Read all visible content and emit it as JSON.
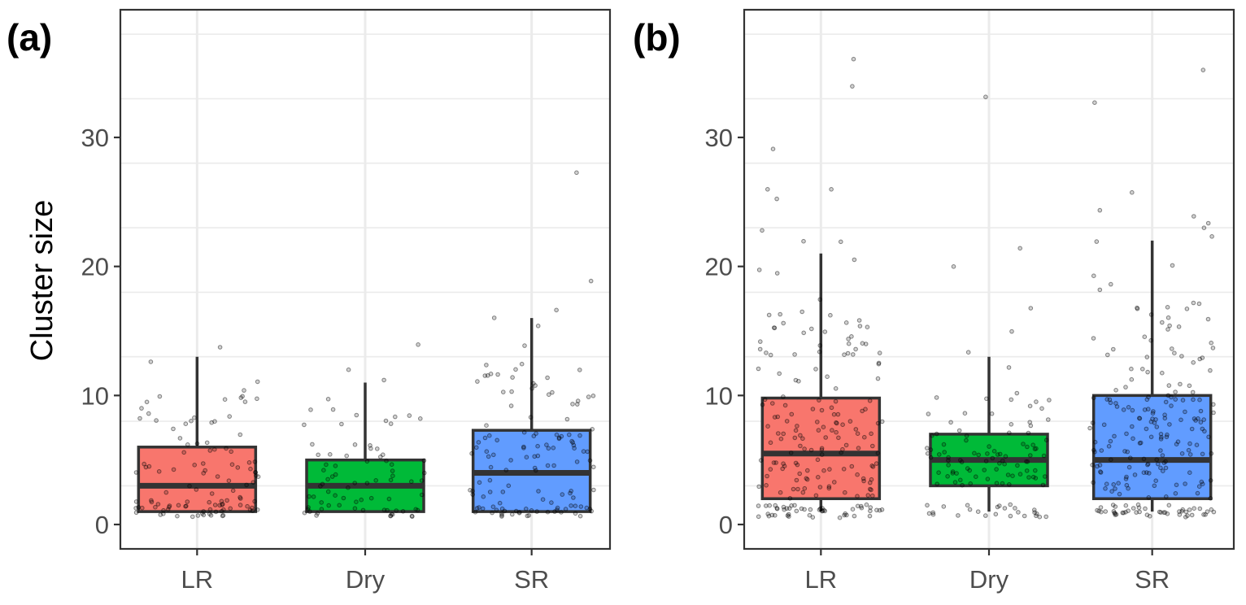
{
  "chart_data": [
    {
      "type": "box",
      "panel_label": "(a)",
      "title": "",
      "xlabel": "",
      "ylabel": "Cluster size",
      "ylim": [
        -2,
        39
      ],
      "yticks": [
        0,
        10,
        20,
        30
      ],
      "ytick_labels": [
        "0",
        "10",
        "20",
        "30"
      ],
      "grid": true,
      "categories": [
        "LR",
        "Dry",
        "SR"
      ],
      "colors": [
        "#F8766D",
        "#00BA38",
        "#619CFF"
      ],
      "boxes": [
        {
          "category": "LR",
          "lower_whisker": 1,
          "q1": 1,
          "median": 3,
          "q3": 6,
          "upper_whisker": 13
        },
        {
          "category": "Dry",
          "lower_whisker": 1,
          "q1": 1,
          "median": 3,
          "q3": 5,
          "upper_whisker": 11
        },
        {
          "category": "SR",
          "lower_whisker": 1,
          "q1": 1,
          "median": 4,
          "q3": 7.3,
          "upper_whisker": 16
        }
      ],
      "jitter_points": [
        {
          "category": "LR",
          "n": 110,
          "notable": [
            13.7,
            12.7,
            11.1,
            10.4,
            10.0,
            9.9,
            9.1,
            8.6,
            8.3,
            8.0
          ]
        },
        {
          "category": "Dry",
          "n": 80,
          "notable": [
            14.0,
            12.0,
            11.2,
            9.8,
            9.0,
            8.9,
            8.0
          ]
        },
        {
          "category": "SR",
          "n": 130,
          "notable": [
            27.2,
            18.8,
            16.6,
            16.1,
            15.3,
            13.8,
            12.4,
            12.0,
            11.9,
            11.0,
            10.6
          ]
        }
      ]
    },
    {
      "type": "box",
      "panel_label": "(b)",
      "title": "",
      "xlabel": "",
      "ylabel": "",
      "ylim": [
        -2,
        39
      ],
      "yticks": [
        0,
        10,
        20,
        30
      ],
      "ytick_labels": [
        "0",
        "10",
        "20",
        "30"
      ],
      "grid": true,
      "categories": [
        "LR",
        "Dry",
        "SR"
      ],
      "colors": [
        "#F8766D",
        "#00BA38",
        "#619CFF"
      ],
      "boxes": [
        {
          "category": "LR",
          "lower_whisker": 1,
          "q1": 2,
          "median": 5.5,
          "q3": 9.8,
          "upper_whisker": 21
        },
        {
          "category": "Dry",
          "lower_whisker": 1,
          "q1": 3,
          "median": 5,
          "q3": 7,
          "upper_whisker": 13
        },
        {
          "category": "SR",
          "lower_whisker": 1,
          "q1": 2,
          "median": 5,
          "q3": 10,
          "upper_whisker": 22
        }
      ],
      "jitter_points": [
        {
          "category": "LR",
          "n": 210,
          "notable": [
            36.0,
            33.9,
            29.2,
            26.0,
            25.9,
            25.3,
            22.7,
            22.0,
            21.9,
            20.6,
            19.8,
            19.4,
            17.5,
            16.2
          ]
        },
        {
          "category": "Dry",
          "n": 120,
          "notable": [
            33.1,
            21.4,
            19.9,
            16.8,
            15.0,
            13.4,
            12.2
          ]
        },
        {
          "category": "SR",
          "n": 230,
          "notable": [
            35.3,
            32.7,
            25.7,
            24.4,
            23.9,
            23.3,
            22.9,
            22.3,
            21.9,
            20.0,
            19.3,
            18.7,
            18.2
          ]
        }
      ]
    }
  ]
}
